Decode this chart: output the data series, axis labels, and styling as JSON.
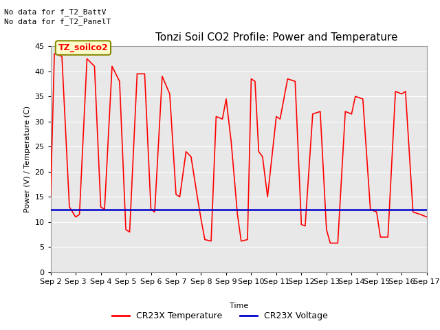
{
  "title": "Tonzi Soil CO2 Profile: Power and Temperature",
  "ylabel": "Power (V) / Temperature (C)",
  "xlabel": "Time",
  "top_left_text1": "No data for f_T2_BattV",
  "top_left_text2": "No data for f_T2_PanelT",
  "legend_label_box": "TZ_soilco2",
  "ylim": [
    0,
    45
  ],
  "yticks": [
    0,
    5,
    10,
    15,
    20,
    25,
    30,
    35,
    40,
    45
  ],
  "xtick_labels": [
    "Sep 2",
    "Sep 3",
    "Sep 4",
    "Sep 5",
    "Sep 6",
    "Sep 7",
    "Sep 8",
    "Sep 9",
    "Sep 10",
    "Sep 11",
    "Sep 12",
    "Sep 13",
    "Sep 14",
    "Sep 15",
    "Sep 16",
    "Sep 17"
  ],
  "fig_bg_color": "#ffffff",
  "plot_bg_color": "#e8e8e8",
  "grid_color": "#ffffff",
  "temp_color": "#ff0000",
  "voltage_color": "#0000cc",
  "legend_temp": "CR23X Temperature",
  "legend_voltage": "CR23X Voltage",
  "voltage_value": 12.5,
  "temp_data_x": [
    0.0,
    0.15,
    0.45,
    0.75,
    1.0,
    1.15,
    1.45,
    1.75,
    2.0,
    2.15,
    2.45,
    2.75,
    3.0,
    3.15,
    3.45,
    3.75,
    4.0,
    4.15,
    4.45,
    4.75,
    5.0,
    5.15,
    5.4,
    5.6,
    5.85,
    6.0,
    6.15,
    6.4,
    6.6,
    6.85,
    7.0,
    7.2,
    7.45,
    7.6,
    7.85,
    8.0,
    8.15,
    8.3,
    8.45,
    8.65,
    9.0,
    9.15,
    9.45,
    9.75,
    10.0,
    10.15,
    10.45,
    10.75,
    11.0,
    11.15,
    11.45,
    11.75,
    12.0,
    12.15,
    12.45,
    12.75,
    13.0,
    13.15,
    13.45,
    13.75,
    14.0,
    14.15,
    14.45,
    14.75,
    15.0
  ],
  "temp_data_y": [
    15.0,
    43.5,
    43.0,
    13.0,
    11.0,
    11.5,
    42.5,
    41.0,
    13.0,
    12.5,
    41.0,
    38.0,
    8.5,
    8.0,
    39.5,
    39.5,
    12.5,
    12.0,
    39.0,
    35.5,
    15.5,
    15.0,
    24.0,
    23.0,
    15.0,
    10.5,
    6.5,
    6.2,
    31.0,
    30.5,
    34.5,
    26.0,
    11.5,
    6.2,
    6.5,
    38.5,
    38.0,
    24.0,
    23.0,
    15.0,
    31.0,
    30.5,
    38.5,
    38.0,
    9.5,
    9.2,
    31.5,
    32.0,
    8.5,
    5.8,
    5.8,
    32.0,
    31.5,
    35.0,
    34.5,
    12.5,
    12.0,
    7.0,
    7.0,
    36.0,
    35.5,
    36.0,
    12.0,
    11.5,
    11.0
  ]
}
